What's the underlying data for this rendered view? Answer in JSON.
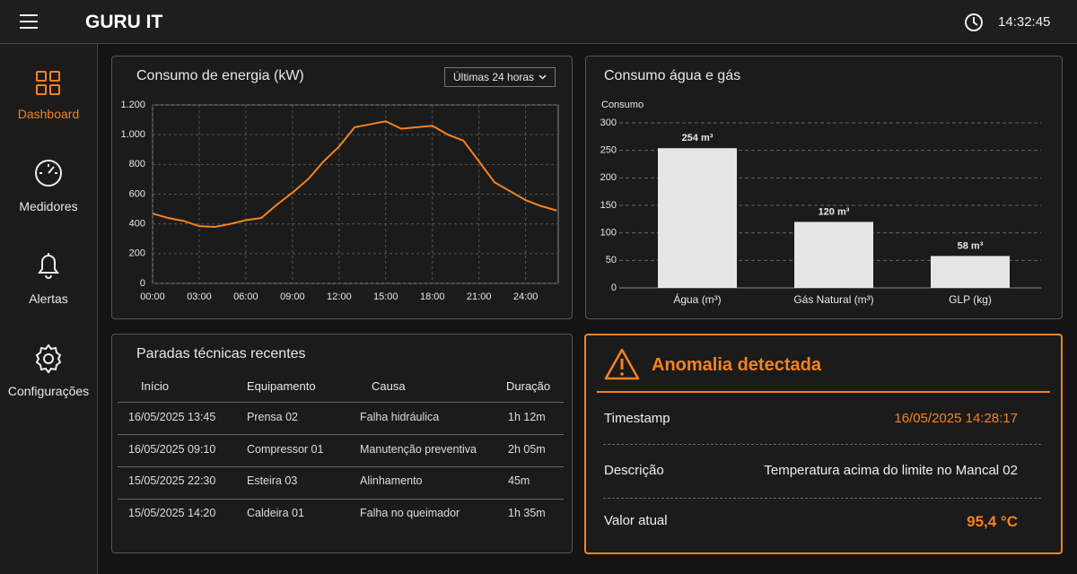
{
  "header": {
    "title": "GURU IT",
    "time": "14:32:45"
  },
  "sidebar": {
    "items": [
      "Dashboard",
      "Medidores",
      "Alertas",
      "Configurações"
    ]
  },
  "energy_chart": {
    "type": "line",
    "title": "Consumo de energia (kW)",
    "filter": "Últimas 24 horas",
    "x": [
      0,
      1,
      2,
      3,
      4,
      5,
      6,
      7,
      8,
      9,
      10,
      11,
      12,
      13,
      14,
      15,
      16,
      17,
      18,
      19,
      20,
      21,
      22,
      23,
      24,
      25,
      26
    ],
    "values": [
      470,
      440,
      420,
      385,
      380,
      400,
      425,
      440,
      530,
      610,
      700,
      820,
      920,
      1050,
      1070,
      1090,
      1040,
      1050,
      1060,
      1000,
      960,
      820,
      680,
      620,
      560,
      520,
      490
    ],
    "color": "#f5821f",
    "xlim": [
      0,
      26.1
    ],
    "xticks": [
      {
        "value": 0,
        "label": "00:00"
      },
      {
        "value": 3,
        "label": "03:00"
      },
      {
        "value": 6,
        "label": "06:00"
      },
      {
        "value": 9,
        "label": "09:00"
      },
      {
        "value": 12,
        "label": "12:00"
      },
      {
        "value": 15,
        "label": "15:00"
      },
      {
        "value": 18,
        "label": "18:00"
      },
      {
        "value": 21,
        "label": "21:00"
      },
      {
        "value": 24,
        "label": "24:00"
      }
    ],
    "ylim": [
      0,
      1200
    ],
    "yticks": [
      0,
      200,
      400,
      600,
      800,
      {
        "value": 1000,
        "label": "1.000"
      },
      {
        "value": 1200,
        "label": "1.200"
      }
    ],
    "grid": true
  },
  "water_gas_chart": {
    "type": "bar",
    "title": "Consumo água e gás",
    "ylabel": "Consumo",
    "categories": [
      "Água (m³)",
      "Gás Natural (m³)",
      "GLP (kg)"
    ],
    "values": [
      254,
      120,
      58
    ],
    "value_labels": [
      "254 m³",
      "120 m³",
      "58 m³"
    ],
    "color": "#e6e6e6",
    "ylim": [
      0,
      300
    ],
    "yticks": [
      0,
      50,
      100,
      150,
      200,
      250,
      300
    ],
    "grid": true
  },
  "downtime": {
    "title": "Paradas técnicas recentes",
    "columns": [
      "Início",
      "Equipamento",
      "Causa",
      "Duração"
    ],
    "rows": [
      [
        "16/05/2025 13:45",
        "Prensa 02",
        "Falha hidráulica",
        "1h 12m"
      ],
      [
        "16/05/2025 09:10",
        "Compressor 01",
        "Manutenção preventiva",
        "2h 05m"
      ],
      [
        "15/05/2025 22:30",
        "Esteira 03",
        "Alinhamento",
        "45m"
      ],
      [
        "15/05/2025 14:20",
        "Caldeira 01",
        "Falha no queimador",
        "1h 35m"
      ]
    ]
  },
  "anomaly": {
    "title": "Anomalia detectada",
    "rows": [
      {
        "label": "Timestamp",
        "value": "16/05/2025 14:28:17"
      },
      {
        "label": "Descrição",
        "value": "Temperatura acima do limite no Mancal 02"
      },
      {
        "label": "Valor atual",
        "value": "95,4 °C"
      }
    ]
  }
}
